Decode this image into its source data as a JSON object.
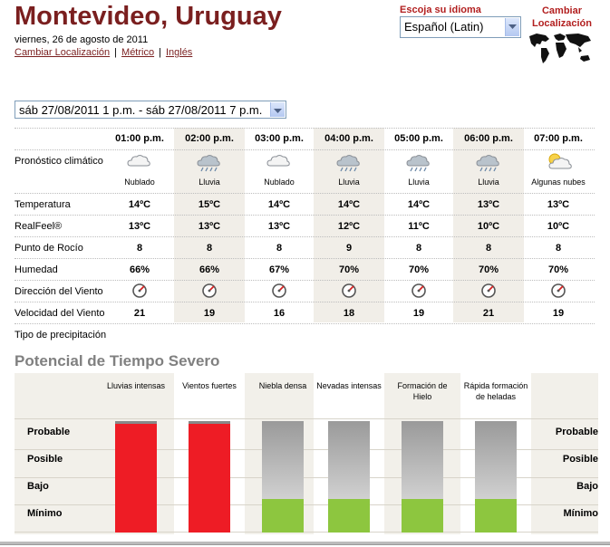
{
  "header": {
    "city": "Montevideo, Uruguay",
    "date": "viernes, 26 de agosto de 2011",
    "links": [
      "Cambiar Localización",
      "Métrico",
      "Inglés"
    ],
    "separators": [
      "|",
      "|"
    ]
  },
  "language": {
    "label": "Escoja su idioma",
    "selected": "Español (Latin)"
  },
  "change_location": {
    "line1": "Cambiar",
    "line2": "Localización",
    "icon": "world-map-icon"
  },
  "range": {
    "selected": "sáb 27/08/2011 1 p.m. - sáb 27/08/2011 7 p.m."
  },
  "forecast": {
    "hours": [
      "01:00 p.m.",
      "02:00 p.m.",
      "03:00 p.m.",
      "04:00 p.m.",
      "05:00 p.m.",
      "06:00 p.m.",
      "07:00 p.m."
    ],
    "row_labels": {
      "climate": "Pronóstico climático",
      "temp": "Temperatura",
      "realfeel": "RealFeel®",
      "dew": "Punto de Rocío",
      "humidity": "Humedad",
      "wind_dir": "Dirección del Viento",
      "wind_speed": "Velocidad del Viento",
      "precip": "Tipo de precipitación"
    },
    "icons": [
      "cloudy-icon",
      "rain-icon",
      "cloudy-icon",
      "rain-icon",
      "rain-icon",
      "rain-icon",
      "partly-cloudy-icon"
    ],
    "conditions": [
      "Nublado",
      "Lluvia",
      "Nublado",
      "Lluvia",
      "Lluvia",
      "Lluvia",
      "Algunas nubes"
    ],
    "temp": [
      "14ºC",
      "15ºC",
      "14ºC",
      "14ºC",
      "14ºC",
      "13ºC",
      "13ºC"
    ],
    "realfeel": [
      "13ºC",
      "13ºC",
      "13ºC",
      "12ºC",
      "11ºC",
      "10ºC",
      "10ºC"
    ],
    "dew": [
      "8",
      "8",
      "8",
      "9",
      "8",
      "8",
      "8"
    ],
    "humidity": [
      "66%",
      "66%",
      "67%",
      "70%",
      "70%",
      "70%",
      "70%"
    ],
    "wind_icon": "wind-direction-icon",
    "wind_speed": [
      "21",
      "19",
      "16",
      "18",
      "19",
      "21",
      "19"
    ]
  },
  "severe": {
    "title": "Potencial de Tiempo Severo",
    "levels": [
      "Probable",
      "Posible",
      "Bajo",
      "Mínimo"
    ],
    "columns": [
      {
        "label": "Lluvias intensas",
        "level": "Probable",
        "level_fraction": 1.0,
        "color": "#ee1c25"
      },
      {
        "label": "Vientos fuertes",
        "level": "Probable",
        "level_fraction": 1.0,
        "color": "#ee1c25"
      },
      {
        "label": "Niebla densa",
        "level": "Mínimo",
        "level_fraction": 0.25,
        "color": "#8dc63f"
      },
      {
        "label": "Nevadas intensas",
        "level": "Mínimo",
        "level_fraction": 0.25,
        "color": "#8dc63f"
      },
      {
        "label": "Formación de Hielo",
        "level": "Mínimo",
        "level_fraction": 0.25,
        "color": "#8dc63f"
      },
      {
        "label": "Rápida formación de heladas",
        "level": "Mínimo",
        "level_fraction": 0.25,
        "color": "#8dc63f"
      }
    ]
  },
  "colors": {
    "brand": "#7a1f1f",
    "accent_red": "#b21f1f",
    "shade": "#f1eee8",
    "severe_high": "#ee1c25",
    "severe_low": "#8dc63f"
  }
}
